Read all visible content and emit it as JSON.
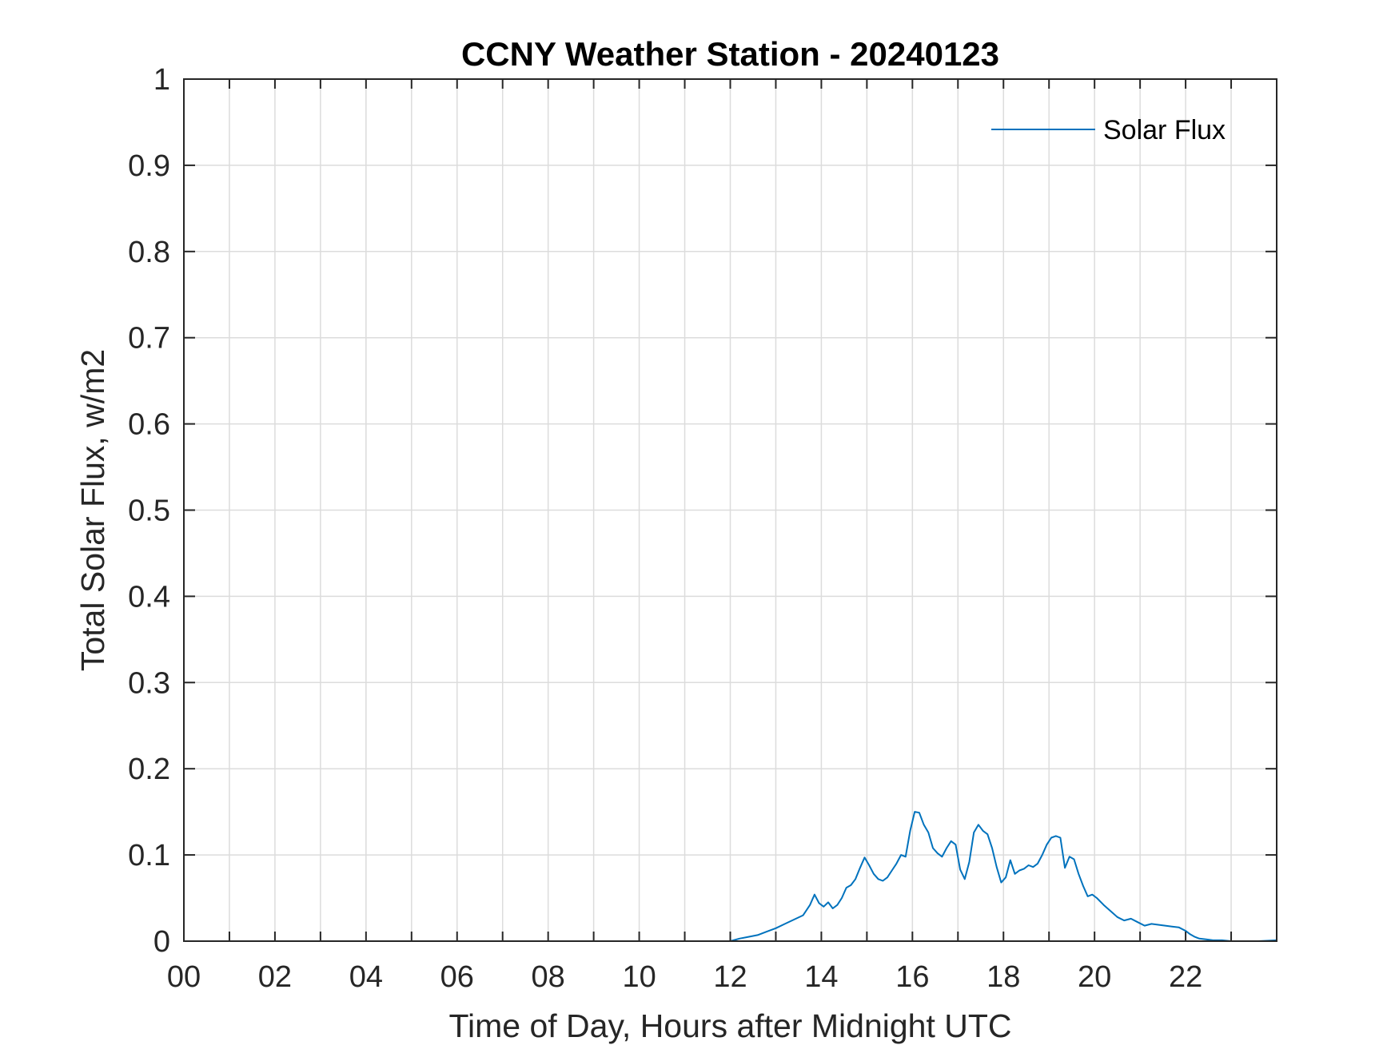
{
  "chart_data": {
    "type": "line",
    "title": "CCNY Weather Station - 20240123",
    "xlabel": "Time of Day, Hours after Midnight UTC",
    "ylabel": "Total Solar Flux, w/m2",
    "xlim": [
      0,
      24
    ],
    "ylim": [
      0,
      1
    ],
    "x_ticks": [
      0,
      2,
      4,
      6,
      8,
      10,
      12,
      14,
      16,
      18,
      20,
      22
    ],
    "x_tick_labels": [
      "00",
      "02",
      "04",
      "06",
      "08",
      "10",
      "12",
      "14",
      "16",
      "18",
      "20",
      "22"
    ],
    "y_ticks": [
      0,
      0.1,
      0.2,
      0.3,
      0.4,
      0.5,
      0.6,
      0.7,
      0.8,
      0.9,
      1
    ],
    "y_tick_labels": [
      "0",
      "0.1",
      "0.2",
      "0.3",
      "0.4",
      "0.5",
      "0.6",
      "0.7",
      "0.8",
      "0.9",
      "1"
    ],
    "grid": true,
    "legend_position": "top-right",
    "series": [
      {
        "name": "Solar Flux",
        "color": "#0072BD",
        "x": [
          0,
          12.0,
          12.2,
          12.4,
          12.6,
          12.8,
          13.0,
          13.2,
          13.4,
          13.6,
          13.75,
          13.85,
          13.95,
          14.05,
          14.15,
          14.25,
          14.35,
          14.45,
          14.55,
          14.65,
          14.75,
          14.85,
          14.95,
          15.05,
          15.15,
          15.25,
          15.35,
          15.45,
          15.55,
          15.65,
          15.75,
          15.85,
          15.95,
          16.05,
          16.15,
          16.25,
          16.35,
          16.45,
          16.55,
          16.65,
          16.75,
          16.85,
          16.95,
          17.05,
          17.15,
          17.25,
          17.35,
          17.45,
          17.55,
          17.65,
          17.75,
          17.85,
          17.95,
          18.05,
          18.15,
          18.25,
          18.35,
          18.45,
          18.55,
          18.65,
          18.75,
          18.85,
          18.95,
          19.05,
          19.15,
          19.25,
          19.35,
          19.45,
          19.55,
          19.65,
          19.75,
          19.85,
          19.95,
          20.05,
          20.2,
          20.35,
          20.5,
          20.65,
          20.8,
          20.95,
          21.1,
          21.25,
          21.4,
          21.55,
          21.7,
          21.85,
          22.0,
          22.1,
          22.2,
          22.3,
          22.45,
          22.6,
          22.8,
          23.0,
          23.3,
          23.6,
          24
        ],
        "y": [
          0,
          0,
          0.003,
          0.005,
          0.007,
          0.011,
          0.015,
          0.02,
          0.025,
          0.03,
          0.042,
          0.054,
          0.044,
          0.04,
          0.045,
          0.038,
          0.042,
          0.05,
          0.062,
          0.065,
          0.072,
          0.085,
          0.097,
          0.088,
          0.078,
          0.072,
          0.07,
          0.074,
          0.082,
          0.09,
          0.1,
          0.098,
          0.128,
          0.15,
          0.149,
          0.135,
          0.126,
          0.108,
          0.102,
          0.098,
          0.108,
          0.116,
          0.112,
          0.083,
          0.072,
          0.092,
          0.126,
          0.135,
          0.128,
          0.124,
          0.108,
          0.086,
          0.068,
          0.074,
          0.094,
          0.078,
          0.082,
          0.084,
          0.088,
          0.086,
          0.09,
          0.1,
          0.112,
          0.12,
          0.122,
          0.12,
          0.085,
          0.098,
          0.095,
          0.078,
          0.064,
          0.052,
          0.054,
          0.05,
          0.042,
          0.035,
          0.028,
          0.024,
          0.026,
          0.022,
          0.018,
          0.02,
          0.019,
          0.018,
          0.017,
          0.016,
          0.012,
          0.008,
          0.005,
          0.003,
          0.002,
          0.001,
          0.001,
          0.0,
          0.0,
          0.0,
          0.001
        ]
      }
    ]
  }
}
